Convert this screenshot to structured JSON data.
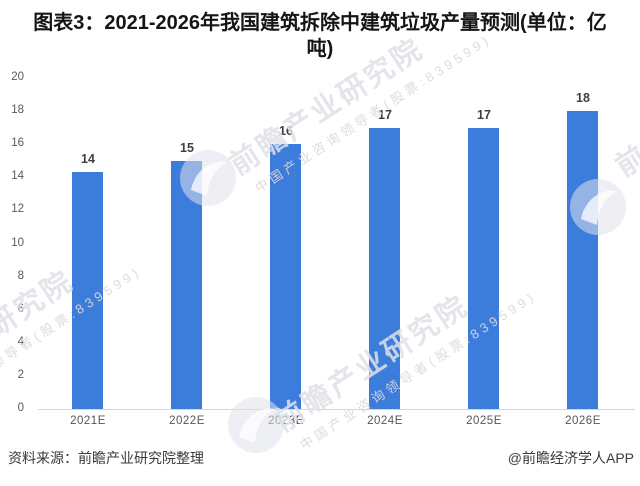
{
  "page": {
    "title": "图表3：2021-2026年我国建筑拆除中建筑垃圾产量预测(单位：亿吨)"
  },
  "chart_data": {
    "type": "bar",
    "title": "2021-2026年我国建筑拆除中建筑垃圾产量预测",
    "unit": "亿吨",
    "categories": [
      "2021E",
      "2022E",
      "2023E",
      "2024E",
      "2025E",
      "2026E"
    ],
    "values": [
      14.3,
      15,
      16,
      17,
      17,
      18
    ],
    "data_labels": [
      "14",
      "15",
      "16",
      "17",
      "17",
      "18"
    ],
    "ylim": [
      0,
      20
    ],
    "yticks": [
      0,
      2,
      4,
      6,
      8,
      10,
      12,
      14,
      16,
      18,
      20
    ],
    "grid": false,
    "legend": false,
    "bar_color": "#3C7DDC"
  },
  "footer": {
    "source": "资料来源：前瞻产业研究院整理",
    "credit": "@前瞻经济学人APP"
  },
  "watermark": {
    "big_text": "前瞻产业研究院",
    "small_text": "中国产业咨询领导者(股票:839599)",
    "logo": "qianzhan-eye-logo"
  }
}
